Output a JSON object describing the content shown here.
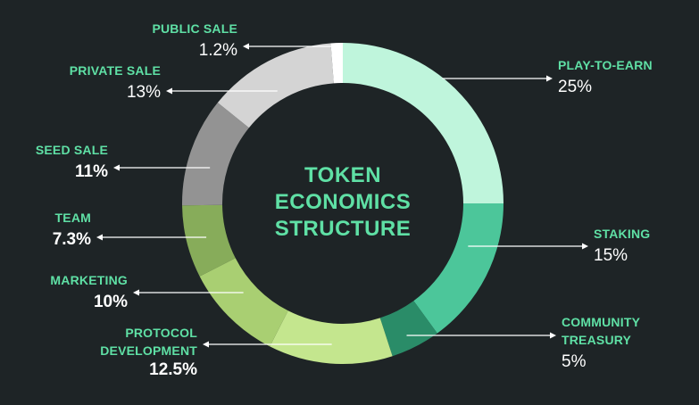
{
  "chart_data": {
    "type": "pie",
    "title": "TOKEN ECONOMICS STRUCTURE",
    "title_lines": [
      "TOKEN",
      "ECONOMICS",
      "STRUCTURE"
    ],
    "slices": [
      {
        "name": "PLAY-TO-EARN",
        "label": "25%",
        "value": 25,
        "color": "#bff5dc"
      },
      {
        "name": "STAKING",
        "label": "15%",
        "value": 15,
        "color": "#4cc69a"
      },
      {
        "name": "COMMUNITY TREASURY",
        "label": "5%",
        "value": 5,
        "color": "#2a8c68"
      },
      {
        "name": "PROTOCOL DEVELOPMENT",
        "label": "12.5%",
        "value": 12.5,
        "color": "#c4e68e"
      },
      {
        "name": "MARKETING",
        "label": "10%",
        "value": 10,
        "color": "#a9cf72"
      },
      {
        "name": "TEAM",
        "label": "7.3%",
        "value": 7.3,
        "color": "#87ac5a"
      },
      {
        "name": "SEED SALE",
        "label": "11%",
        "value": 11,
        "color": "#939393"
      },
      {
        "name": "PRIVATE SALE",
        "label": "13%",
        "value": 13,
        "color": "#d4d4d4"
      },
      {
        "name": "PUBLIC SALE",
        "label": "1.2%",
        "value": 1.2,
        "color": "#ffffff"
      }
    ],
    "background": "#1e2426",
    "accent": "#5fe0a5"
  }
}
